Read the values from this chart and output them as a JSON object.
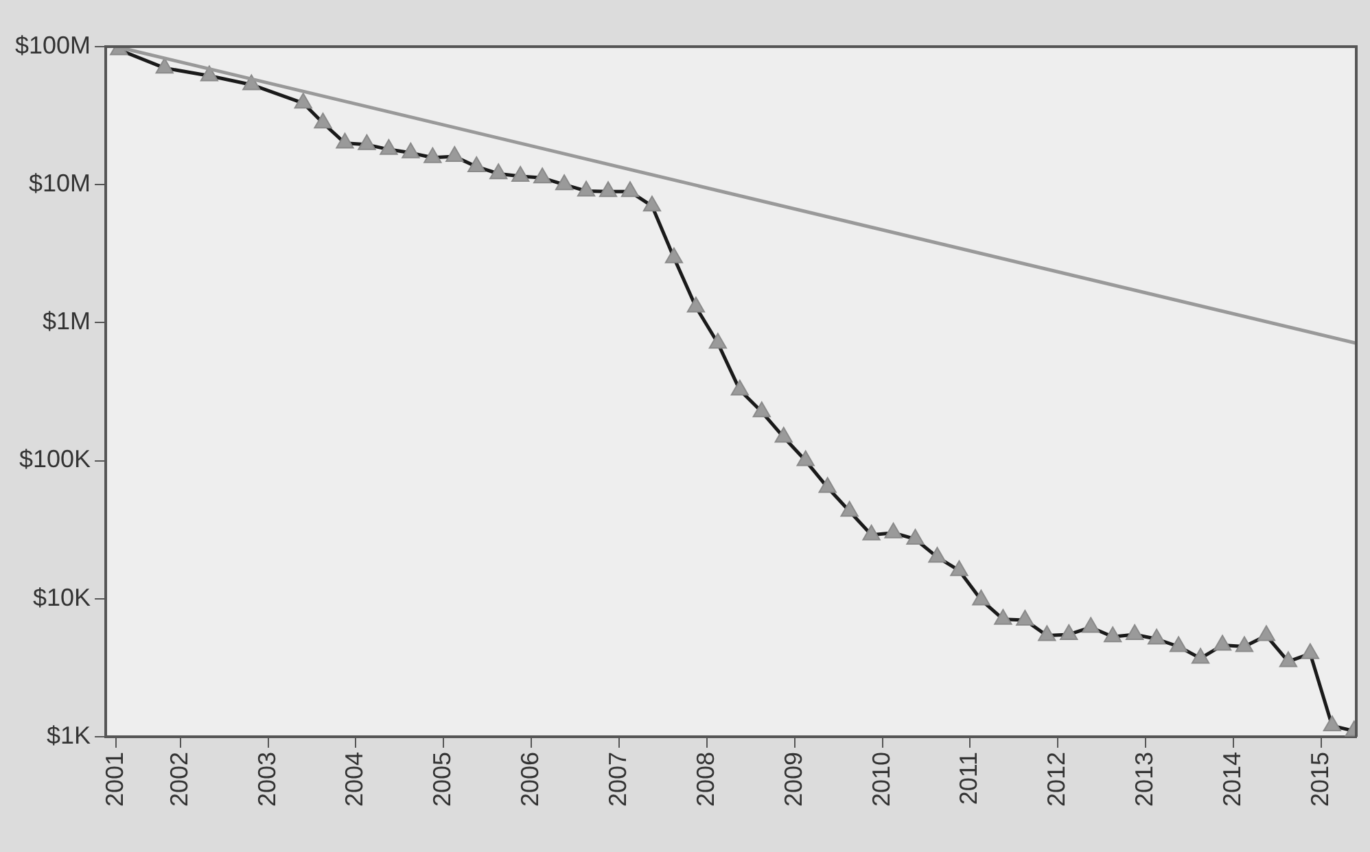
{
  "chart_data": {
    "type": "line",
    "xlim": [
      2001.15,
      2015.4
    ],
    "ylim": [
      1000,
      100000000
    ],
    "log": "y",
    "grid": false,
    "legend": false,
    "xticks": [
      {
        "value": 2001.27,
        "label": "2001"
      },
      2002,
      2003,
      2004,
      2005,
      2006,
      2007,
      2008,
      2009,
      2010,
      2011,
      2012,
      2013,
      2014,
      2015
    ],
    "yticks": [
      {
        "value": 1000,
        "label": "$1K"
      },
      {
        "value": 10000,
        "label": "$10K"
      },
      {
        "value": 100000,
        "label": "$100K"
      },
      {
        "value": 1000000,
        "label": "$1M"
      },
      {
        "value": 10000000,
        "label": "$10M"
      },
      {
        "value": 100000000,
        "label": "$100M"
      }
    ],
    "series": [
      {
        "color": "#1a1a1a",
        "marker": "triangle",
        "x": [
          2001.3,
          2001.82,
          2002.33,
          2002.81,
          2003.4,
          2003.625,
          2003.875,
          2004.125,
          2004.375,
          2004.625,
          2004.875,
          2005.125,
          2005.375,
          2005.625,
          2005.875,
          2006.125,
          2006.375,
          2006.625,
          2006.875,
          2007.125,
          2007.375,
          2007.625,
          2007.875,
          2008.125,
          2008.375,
          2008.625,
          2008.875,
          2009.125,
          2009.375,
          2009.625,
          2009.875,
          2010.125,
          2010.375,
          2010.625,
          2010.875,
          2011.125,
          2011.375,
          2011.625,
          2011.875,
          2012.125,
          2012.375,
          2012.625,
          2012.875,
          2013.125,
          2013.375,
          2013.625,
          2013.875,
          2014.125,
          2014.375,
          2014.625,
          2014.875,
          2015.125,
          2015.375
        ],
        "values": [
          95000000,
          70000000,
          61500000,
          53000000,
          39000000,
          28000000,
          20000000,
          19500000,
          18000000,
          17000000,
          15700000,
          16000000,
          13500000,
          12000000,
          11500000,
          11200000,
          10000000,
          9000000,
          8900000,
          8900000,
          7000000,
          2950000,
          1300000,
          710000,
          325000,
          226000,
          148000,
          100000,
          64000,
          43000,
          29000,
          30000,
          27000,
          20000,
          16000,
          9800,
          7100,
          7000,
          5400,
          5500,
          6200,
          5300,
          5500,
          5100,
          4500,
          3700,
          4600,
          4500,
          5400,
          3500,
          4000,
          1200,
          1100
        ]
      },
      {
        "color": "#999999",
        "x": [
          2001.27,
          2015.4
        ],
        "values": [
          100000000,
          710000
        ]
      }
    ]
  }
}
